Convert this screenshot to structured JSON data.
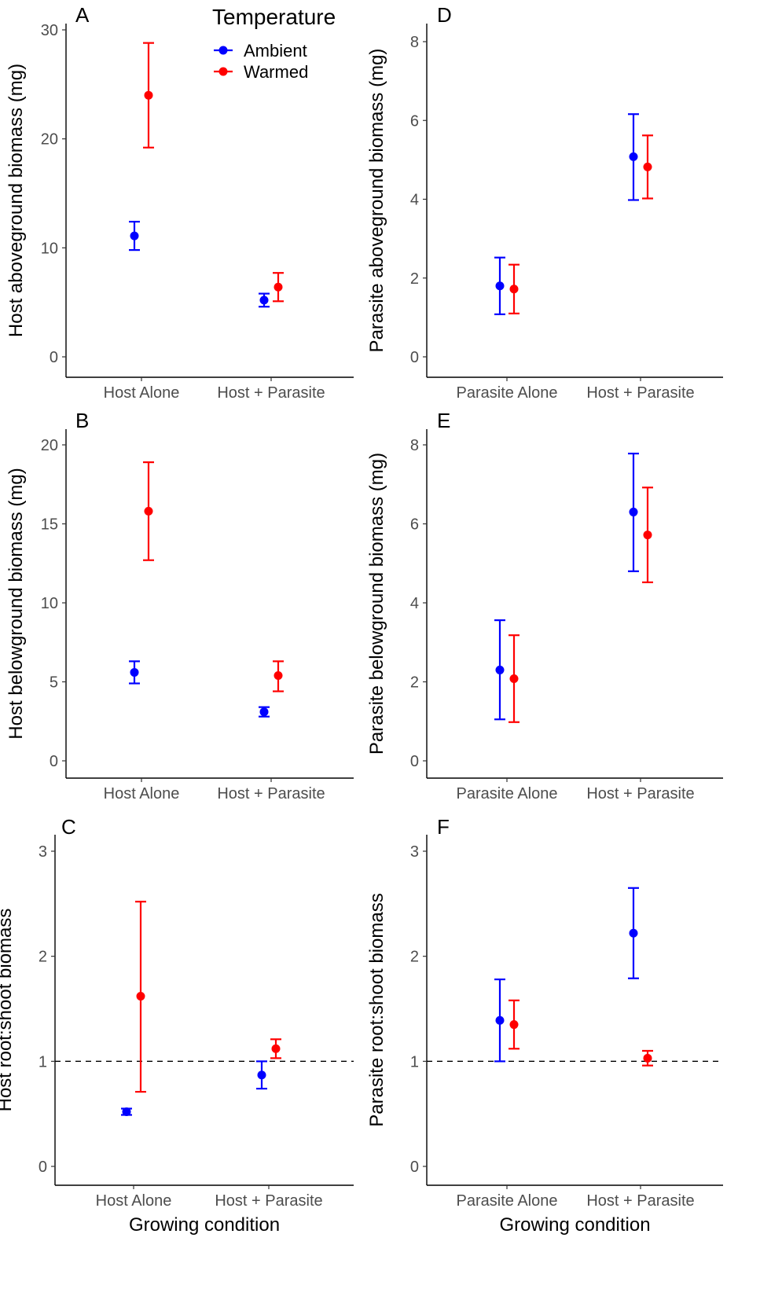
{
  "legend": {
    "title": "Temperature",
    "entries": [
      {
        "label": "Ambient",
        "color": "#0000ff"
      },
      {
        "label": "Warmed",
        "color": "#ff0000"
      }
    ]
  },
  "chart_data": [
    {
      "panel": "A",
      "type": "scatter",
      "ylabel": "Host aboveground biomass (mg)",
      "xlabel": "",
      "categories": [
        "Host Alone",
        "Host + Parasite"
      ],
      "ylim": [
        0,
        30
      ],
      "yticks": [
        0,
        10,
        20,
        30
      ],
      "series": [
        {
          "name": "Ambient",
          "color": "#0000ff",
          "values": [
            11.1,
            5.2
          ],
          "lower": [
            9.8,
            4.6
          ],
          "upper": [
            12.4,
            5.8
          ]
        },
        {
          "name": "Warmed",
          "color": "#ff0000",
          "values": [
            24.0,
            6.4
          ],
          "lower": [
            19.2,
            5.1
          ],
          "upper": [
            28.8,
            7.7
          ]
        }
      ]
    },
    {
      "panel": "B",
      "type": "scatter",
      "ylabel": "Host belowground biomass (mg)",
      "xlabel": "",
      "categories": [
        "Host Alone",
        "Host + Parasite"
      ],
      "ylim": [
        0,
        20
      ],
      "yticks": [
        0,
        5,
        10,
        15,
        20
      ],
      "series": [
        {
          "name": "Ambient",
          "color": "#0000ff",
          "values": [
            5.6,
            3.1
          ],
          "lower": [
            4.9,
            2.8
          ],
          "upper": [
            6.3,
            3.4
          ]
        },
        {
          "name": "Warmed",
          "color": "#ff0000",
          "values": [
            15.8,
            5.4
          ],
          "lower": [
            12.7,
            4.4
          ],
          "upper": [
            18.9,
            6.3
          ]
        }
      ]
    },
    {
      "panel": "C",
      "type": "scatter",
      "ylabel": "Host root:shoot biomass",
      "xlabel": "Growing condition",
      "categories": [
        "Host Alone",
        "Host + Parasite"
      ],
      "ylim": [
        0,
        3
      ],
      "yticks": [
        0,
        1,
        2,
        3
      ],
      "hline": 1,
      "series": [
        {
          "name": "Ambient",
          "color": "#0000ff",
          "values": [
            0.52,
            0.87
          ],
          "lower": [
            0.49,
            0.74
          ],
          "upper": [
            0.55,
            1.0
          ]
        },
        {
          "name": "Warmed",
          "color": "#ff0000",
          "values": [
            1.62,
            1.12
          ],
          "lower": [
            0.71,
            1.03
          ],
          "upper": [
            2.52,
            1.21
          ]
        }
      ]
    },
    {
      "panel": "D",
      "type": "scatter",
      "ylabel": "Parasite aboveground biomass (mg)",
      "xlabel": "",
      "categories": [
        "Parasite Alone",
        "Host + Parasite"
      ],
      "ylim": [
        0,
        8
      ],
      "yticks": [
        0,
        2,
        4,
        6,
        8
      ],
      "series": [
        {
          "name": "Ambient",
          "color": "#0000ff",
          "values": [
            1.8,
            5.08
          ],
          "lower": [
            1.08,
            3.98
          ],
          "upper": [
            2.52,
            6.16
          ]
        },
        {
          "name": "Warmed",
          "color": "#ff0000",
          "values": [
            1.72,
            4.82
          ],
          "lower": [
            1.1,
            4.02
          ],
          "upper": [
            2.34,
            5.62
          ]
        }
      ]
    },
    {
      "panel": "E",
      "type": "scatter",
      "ylabel": "Parasite belowground biomass (mg)",
      "xlabel": "",
      "categories": [
        "Parasite Alone",
        "Host + Parasite"
      ],
      "ylim": [
        0,
        8
      ],
      "yticks": [
        0,
        2,
        4,
        6,
        8
      ],
      "series": [
        {
          "name": "Ambient",
          "color": "#0000ff",
          "values": [
            2.3,
            6.3
          ],
          "lower": [
            1.05,
            4.8
          ],
          "upper": [
            3.56,
            7.78
          ]
        },
        {
          "name": "Warmed",
          "color": "#ff0000",
          "values": [
            2.08,
            5.72
          ],
          "lower": [
            0.98,
            4.52
          ],
          "upper": [
            3.18,
            6.92
          ]
        }
      ]
    },
    {
      "panel": "F",
      "type": "scatter",
      "ylabel": "Parasite root:shoot biomass",
      "xlabel": "Growing condition",
      "categories": [
        "Parasite Alone",
        "Host + Parasite"
      ],
      "ylim": [
        0,
        3
      ],
      "yticks": [
        0,
        1,
        2,
        3
      ],
      "hline": 1,
      "series": [
        {
          "name": "Ambient",
          "color": "#0000ff",
          "values": [
            1.39,
            2.22
          ],
          "lower": [
            1.0,
            1.79
          ],
          "upper": [
            1.78,
            2.65
          ]
        },
        {
          "name": "Warmed",
          "color": "#ff0000",
          "values": [
            1.35,
            1.03
          ],
          "lower": [
            1.12,
            0.96
          ],
          "upper": [
            1.58,
            1.1
          ]
        }
      ]
    }
  ]
}
